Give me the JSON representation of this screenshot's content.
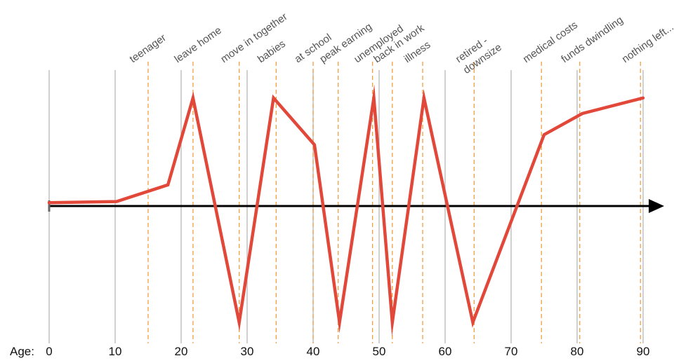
{
  "chart_data": {
    "type": "line",
    "x_prefix_label": "Age:",
    "xlim": [
      0,
      90
    ],
    "x_ticks": [
      0,
      10,
      20,
      30,
      40,
      50,
      60,
      70,
      80,
      90
    ],
    "tick_labels": [
      "0",
      "10",
      "20",
      "30",
      "40",
      "50",
      "60",
      "70",
      "80",
      "90"
    ],
    "ylim": [
      -1,
      1
    ],
    "series": [
      {
        "color": "#e2483a",
        "x": [
          0,
          10.2,
          18,
          21.8,
          28.8,
          34,
          40.2,
          44,
          49.2,
          52,
          56.8,
          64.2,
          75,
          80.8,
          90
        ],
        "y": [
          0.03,
          0.04,
          0.19,
          0.97,
          -1.0,
          0.97,
          0.55,
          -1.0,
          0.97,
          -1.0,
          0.97,
          -1.0,
          0.64,
          0.83,
          0.97
        ]
      }
    ],
    "events": [
      {
        "age": 15,
        "label": "teenager"
      },
      {
        "age": 21.8,
        "label": "leave home"
      },
      {
        "age": 28.8,
        "label": "move in together"
      },
      {
        "age": 34.4,
        "label": "babies"
      },
      {
        "age": 40,
        "label": "at school"
      },
      {
        "age": 43.8,
        "label": "peak earning"
      },
      {
        "age": 49,
        "label": "unemployed"
      },
      {
        "age": 52,
        "label": "back in work"
      },
      {
        "age": 56.6,
        "label": "illness"
      },
      {
        "age": 64.4,
        "label": [
          "retired -",
          "downsize"
        ]
      },
      {
        "age": 74.6,
        "label": "medical costs"
      },
      {
        "age": 80.4,
        "label": "funds dwindling"
      },
      {
        "age": 89.6,
        "label": "nothing left..."
      }
    ],
    "colors": {
      "line": "#e2483a",
      "event_lines": "#f0a040",
      "grid": "#b8b8b8",
      "axis": "#000000"
    },
    "grid": true,
    "axis_arrow": true
  }
}
